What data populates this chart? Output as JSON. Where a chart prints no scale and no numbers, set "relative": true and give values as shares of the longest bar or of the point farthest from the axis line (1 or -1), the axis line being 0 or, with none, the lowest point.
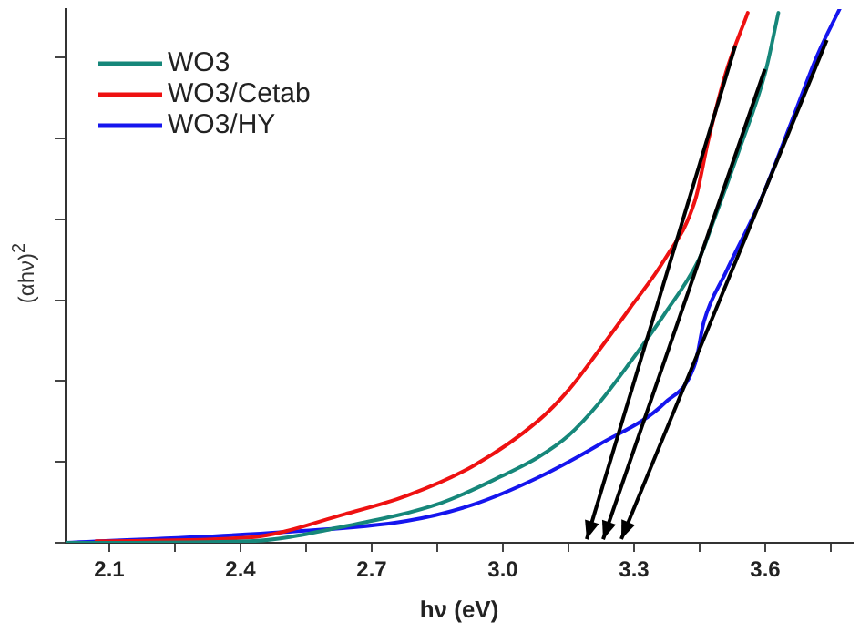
{
  "chart_data": {
    "type": "line",
    "xlabel": "hν (eV)",
    "ylabel": "(αhν)$^{2}$",
    "relative": true,
    "legend": "top left",
    "grid": false,
    "marker": "none",
    "line_style": "solid",
    "xlim": [
      2.0,
      3.8
    ],
    "xticks": [
      2.1,
      {
        "value": 2.25,
        "label": null
      },
      2.4,
      {
        "value": 2.55,
        "label": null
      },
      2.7,
      {
        "value": 2.85,
        "label": null
      },
      {
        "value": 3.0,
        "label": "3.0"
      },
      {
        "value": 3.15,
        "label": null
      },
      3.3,
      {
        "value": 3.45,
        "label": null
      },
      3.6,
      {
        "value": 3.75,
        "label": null
      }
    ],
    "series": [
      {
        "name": "WO3",
        "color": "#16877a",
        "x": [
          2.0,
          2.42,
          2.64,
          2.86,
          3.0,
          3.08,
          3.15,
          3.22,
          3.29,
          3.37,
          3.45,
          3.48,
          3.54,
          3.6,
          3.63
        ],
        "values": [
          0,
          0.003,
          0.031,
          0.075,
          0.126,
          0.16,
          0.201,
          0.262,
          0.337,
          0.429,
          0.534,
          0.599,
          0.735,
          0.881,
          0.993
        ]
      },
      {
        "name": "WO3/Cetab",
        "color": "#ee1111",
        "x": [
          2.07,
          2.42,
          2.64,
          2.78,
          2.93,
          3.08,
          3.15,
          3.22,
          3.29,
          3.37,
          3.44,
          3.47,
          3.51,
          3.56
        ],
        "values": [
          0.003,
          0.01,
          0.054,
          0.088,
          0.143,
          0.228,
          0.286,
          0.361,
          0.439,
          0.531,
          0.643,
          0.755,
          0.881,
          0.993
        ]
      },
      {
        "name": "WO3/HY",
        "color": "#1515ee",
        "x": [
          2.0,
          2.5,
          2.78,
          2.93,
          3.08,
          3.22,
          3.37,
          3.44,
          3.46,
          3.51,
          3.59,
          3.66,
          3.72,
          3.77
        ],
        "values": [
          0,
          0.02,
          0.041,
          0.071,
          0.122,
          0.184,
          0.262,
          0.337,
          0.415,
          0.507,
          0.643,
          0.789,
          0.915,
          1.0
        ]
      }
    ]
  }
}
